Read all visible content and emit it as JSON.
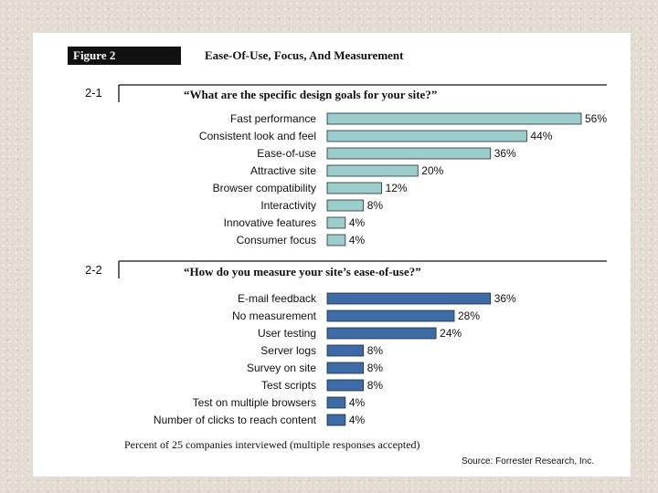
{
  "figure": {
    "label": "Figure 2",
    "title": "Ease-Of-Use, Focus, And Measurement",
    "footnote": "Percent of 25 companies interviewed (multiple responses accepted)",
    "source": "Source: Forrester Research, Inc."
  },
  "chart_data": [
    {
      "type": "bar",
      "orientation": "horizontal",
      "id": "2-1",
      "title": "“What are the specific design goals for your site?”",
      "categories": [
        "Fast performance",
        "Consistent look and feel",
        "Ease-of-use",
        "Attractive site",
        "Browser compatibility",
        "Interactivity",
        "Innovative features",
        "Consumer focus"
      ],
      "values": [
        56,
        44,
        36,
        20,
        12,
        8,
        4,
        4
      ],
      "value_labels": [
        "56%",
        "44%",
        "36%",
        "20%",
        "12%",
        "8%",
        "4%",
        "4%"
      ],
      "color": "#9ccdcb",
      "xlim": [
        0,
        56
      ],
      "unit": "%"
    },
    {
      "type": "bar",
      "orientation": "horizontal",
      "id": "2-2",
      "title": "“How do you measure your site’s ease-of-use?”",
      "categories": [
        "E-mail feedback",
        "No measurement",
        "User testing",
        "Server logs",
        "Survey on site",
        "Test scripts",
        "Test on multiple browsers",
        "Number of clicks to reach content"
      ],
      "values": [
        36,
        28,
        24,
        8,
        8,
        8,
        4,
        4
      ],
      "value_labels": [
        "36%",
        "28%",
        "24%",
        "8%",
        "8%",
        "8%",
        "4%",
        "4%"
      ],
      "color": "#3e6aa5",
      "xlim": [
        0,
        56
      ],
      "unit": "%"
    }
  ]
}
